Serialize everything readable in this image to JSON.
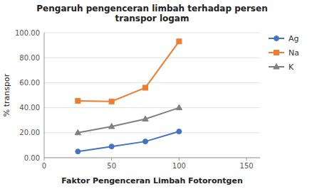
{
  "chart_data": {
    "type": "line",
    "title": "Pengaruh pengenceran limbah terhadap persen\ntranspor logam",
    "xlabel": "Faktor Pengenceran Limbah Fotorontgen",
    "ylabel": "% transpor",
    "x": [
      25,
      50,
      75,
      100
    ],
    "series": [
      {
        "name": "Ag",
        "color": "#4472C4",
        "marker": "circle",
        "values": [
          5.0,
          9.0,
          13.0,
          21.0
        ]
      },
      {
        "name": "Na",
        "color": "#ED7D31",
        "marker": "square",
        "values": [
          45.5,
          45.0,
          56.0,
          93.0
        ]
      },
      {
        "name": "K",
        "color": "#808080",
        "marker": "triangle",
        "values": [
          20.0,
          25.0,
          31.0,
          40.0
        ]
      }
    ],
    "xlim": [
      0,
      160
    ],
    "ylim": [
      0,
      100
    ],
    "xticks": [
      0,
      50,
      100,
      150
    ],
    "yticks": [
      {
        "value": 0,
        "label": "0.00"
      },
      {
        "value": 20,
        "label": "20.00"
      },
      {
        "value": 40,
        "label": "40.00"
      },
      {
        "value": 60,
        "label": "60.00"
      },
      {
        "value": 80,
        "label": "80.00"
      },
      {
        "value": 100,
        "label": "100.00"
      }
    ],
    "grid": true,
    "legend": "right"
  }
}
